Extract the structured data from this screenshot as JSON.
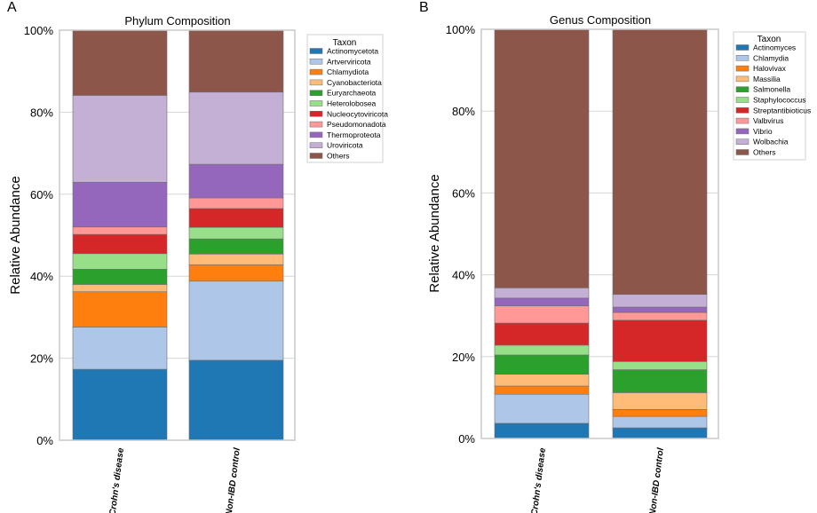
{
  "chart_data": [
    {
      "panel": "A",
      "type": "bar",
      "stacked": true,
      "title": "Phylum Composition",
      "ylabel": "Relative Abundance",
      "xlabel": "",
      "ylim": [
        0,
        100
      ],
      "yticks": [
        "0%",
        "20%",
        "40%",
        "60%",
        "80%",
        "100%"
      ],
      "categories": [
        "Crohn's disease",
        "Non-IBD control"
      ],
      "legend_title": "Taxon",
      "legend_position": "top-right",
      "series": [
        {
          "name": "Actinomycetota",
          "color": "#1f77b4",
          "values": [
            17.3,
            19.5
          ]
        },
        {
          "name": "Artverviricota",
          "color": "#aec7e8",
          "values": [
            10.3,
            19.3
          ]
        },
        {
          "name": "Chlamydiota",
          "color": "#ff7f0e",
          "values": [
            8.6,
            4.0
          ]
        },
        {
          "name": "Cyanobacteriota",
          "color": "#ffbb78",
          "values": [
            1.8,
            2.6
          ]
        },
        {
          "name": "Euryarchaeota",
          "color": "#2ca02c",
          "values": [
            3.7,
            3.7
          ]
        },
        {
          "name": "Heterolobosea",
          "color": "#98df8a",
          "values": [
            3.8,
            2.8
          ]
        },
        {
          "name": "Nucleocytoviricota",
          "color": "#d62728",
          "values": [
            4.7,
            4.6
          ]
        },
        {
          "name": "Pseudomonadota",
          "color": "#ff9896",
          "values": [
            1.8,
            2.6
          ]
        },
        {
          "name": "Thermoproteota",
          "color": "#9467bd",
          "values": [
            10.9,
            8.2
          ]
        },
        {
          "name": "Uroviricota",
          "color": "#c5b0d5",
          "values": [
            21.2,
            17.6
          ]
        },
        {
          "name": "Others",
          "color": "#8c564b",
          "values": [
            15.9,
            15.1
          ]
        }
      ]
    },
    {
      "panel": "B",
      "type": "bar",
      "stacked": true,
      "title": "Genus Composition",
      "ylabel": "Relative Abundance",
      "xlabel": "",
      "ylim": [
        0,
        100
      ],
      "yticks": [
        "0%",
        "20%",
        "40%",
        "60%",
        "80%",
        "100%"
      ],
      "categories": [
        "Crohn's disease",
        "Non-IBD control"
      ],
      "legend_title": "Taxon",
      "legend_position": "top-right",
      "series": [
        {
          "name": "Actinomyces",
          "color": "#1f77b4",
          "values": [
            3.7,
            2.6
          ]
        },
        {
          "name": "Chlamydia",
          "color": "#aec7e8",
          "values": [
            7.1,
            2.8
          ]
        },
        {
          "name": "Halovivax",
          "color": "#ff7f0e",
          "values": [
            2.0,
            1.7
          ]
        },
        {
          "name": "Massilia",
          "color": "#ffbb78",
          "values": [
            2.9,
            4.1
          ]
        },
        {
          "name": "Salmonella",
          "color": "#2ca02c",
          "values": [
            4.7,
            5.6
          ]
        },
        {
          "name": "Staphylococcus",
          "color": "#98df8a",
          "values": [
            2.4,
            2.0
          ]
        },
        {
          "name": "Streptantibioticus",
          "color": "#d62728",
          "values": [
            5.4,
            10.1
          ]
        },
        {
          "name": "Valbvirus",
          "color": "#ff9896",
          "values": [
            4.2,
            1.9
          ]
        },
        {
          "name": "Vibrio",
          "color": "#9467bd",
          "values": [
            1.9,
            1.3
          ]
        },
        {
          "name": "Wolbachia",
          "color": "#c5b0d5",
          "values": [
            2.5,
            3.1
          ]
        },
        {
          "name": "Others",
          "color": "#8c564b",
          "values": [
            63.2,
            64.8
          ]
        }
      ]
    }
  ]
}
